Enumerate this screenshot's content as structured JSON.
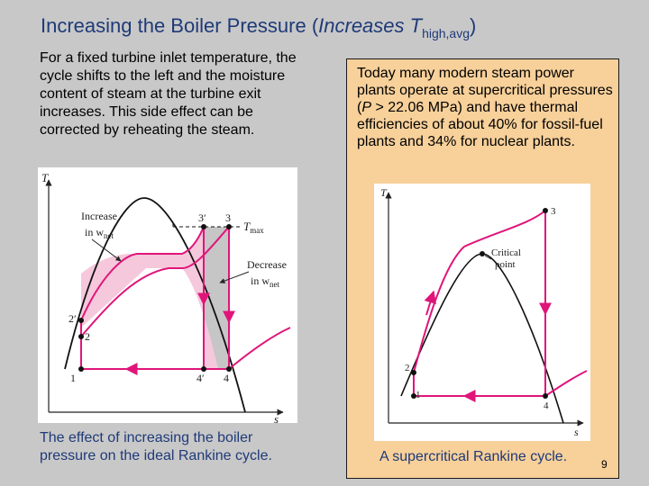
{
  "slide": {
    "title_main": "Increasing the Boiler Pressure (",
    "title_italic": "Increases T",
    "title_sub": "high,avg",
    "title_close": ")",
    "page_number": "9"
  },
  "left": {
    "paragraph": "For a fixed turbine inlet temperature, the cycle shifts to the left and the moisture content of steam at the turbine exit increases. This side effect can be corrected by reheating the steam.",
    "caption": "The effect of increasing the boiler pressure on the ideal Rankine cycle."
  },
  "right": {
    "para_part1": "Today many modern steam power plants operate at supercritical pressures (",
    "para_italic": "P",
    "para_part2": " > 22.06 MPa) and have thermal efficiencies of about 40% for fossil-fuel plants and 34% for nuclear plants.",
    "caption": "A supercritical Rankine cycle."
  },
  "figure_left": {
    "axis_t": "T",
    "axis_s": "s",
    "label_increase_1": "Increase",
    "label_increase_2": "in w",
    "label_increase_sub": "net",
    "label_decrease_1": "Decrease",
    "label_decrease_2": "in w",
    "label_decrease_sub": "net",
    "label_tmax": "T",
    "label_tmax_sub": "max",
    "state_1": "1",
    "state_2": "2",
    "state_2p": "2′",
    "state_3": "3",
    "state_3p": "3′",
    "state_4": "4",
    "state_4p": "4′"
  },
  "figure_right": {
    "axis_t": "T",
    "axis_s": "s",
    "label_critical_1": "Critical",
    "label_critical_2": "point",
    "state_1": "1",
    "state_2": "2",
    "state_3": "3",
    "state_4": "4"
  },
  "colors": {
    "title": "#1f3a78",
    "panel": "#f7d09a",
    "cycle_line": "#e0157a",
    "increase_fill": "#f6c8dc",
    "decrease_fill": "#c6c6c6"
  }
}
